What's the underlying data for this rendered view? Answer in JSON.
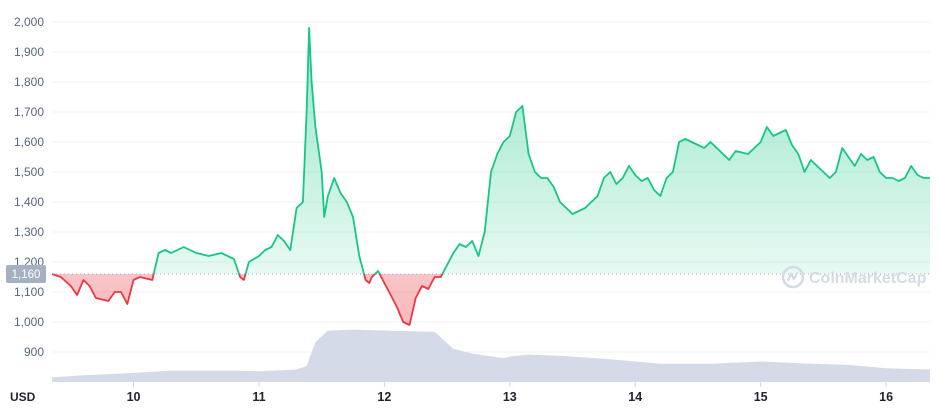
{
  "chart_data": {
    "type": "line",
    "unit_label": "USD",
    "reference_value": 1160,
    "reference_label": "1,160",
    "watermark_text": "CoinMarketCap",
    "watermark_icon": "coinmarketcap-logo-icon",
    "ylim": [
      800,
      2000
    ],
    "y_ticks": [
      900,
      1000,
      1100,
      1200,
      1300,
      1400,
      1500,
      1600,
      1700,
      1800,
      1900,
      2000
    ],
    "y_tick_labels": [
      "900",
      "1,000",
      "1,100",
      "1,200",
      "1,300",
      "1,400",
      "1,500",
      "1,600",
      "1,700",
      "1,800",
      "1,900",
      "2,000"
    ],
    "xlim": [
      9.35,
      16.35
    ],
    "x_ticks": [
      10,
      11,
      12,
      13,
      14,
      15,
      16
    ],
    "x_tick_labels": [
      "10",
      "11",
      "12",
      "13",
      "14",
      "15",
      "16"
    ],
    "colors": {
      "above": "#16c784",
      "below": "#ea3943",
      "volume": "#cfd6e4"
    },
    "price": {
      "x": [
        9.35,
        9.42,
        9.5,
        9.55,
        9.6,
        9.65,
        9.7,
        9.8,
        9.85,
        9.9,
        9.95,
        10.0,
        10.05,
        10.15,
        10.2,
        10.25,
        10.3,
        10.4,
        10.5,
        10.6,
        10.7,
        10.8,
        10.85,
        10.88,
        10.92,
        11.0,
        11.05,
        11.1,
        11.15,
        11.2,
        11.25,
        11.3,
        11.35,
        11.38,
        11.4,
        11.42,
        11.45,
        11.5,
        11.52,
        11.55,
        11.6,
        11.65,
        11.7,
        11.75,
        11.8,
        11.85,
        11.88,
        11.9,
        11.95,
        12.05,
        12.1,
        12.15,
        12.2,
        12.25,
        12.3,
        12.35,
        12.4,
        12.45,
        12.55,
        12.6,
        12.65,
        12.7,
        12.75,
        12.8,
        12.85,
        12.9,
        12.95,
        13.0,
        13.05,
        13.1,
        13.15,
        13.2,
        13.25,
        13.3,
        13.35,
        13.4,
        13.45,
        13.5,
        13.6,
        13.7,
        13.75,
        13.8,
        13.85,
        13.9,
        13.95,
        14.0,
        14.05,
        14.1,
        14.15,
        14.2,
        14.25,
        14.3,
        14.35,
        14.4,
        14.5,
        14.55,
        14.6,
        14.65,
        14.7,
        14.75,
        14.8,
        14.9,
        15.0,
        15.05,
        15.1,
        15.15,
        15.2,
        15.25,
        15.3,
        15.35,
        15.4,
        15.45,
        15.5,
        15.55,
        15.6,
        15.65,
        15.7,
        15.75,
        15.8,
        15.85,
        15.9,
        15.95,
        16.0,
        16.05,
        16.1,
        16.15,
        16.2,
        16.25,
        16.3,
        16.35
      ],
      "y": [
        1160,
        1150,
        1120,
        1090,
        1140,
        1120,
        1080,
        1070,
        1100,
        1100,
        1060,
        1140,
        1150,
        1140,
        1230,
        1240,
        1230,
        1250,
        1230,
        1220,
        1230,
        1210,
        1150,
        1140,
        1200,
        1220,
        1240,
        1250,
        1290,
        1270,
        1240,
        1380,
        1400,
        1700,
        1980,
        1800,
        1650,
        1500,
        1350,
        1420,
        1480,
        1430,
        1400,
        1350,
        1220,
        1140,
        1130,
        1150,
        1170,
        1090,
        1050,
        1000,
        990,
        1080,
        1120,
        1110,
        1150,
        1150,
        1230,
        1260,
        1250,
        1270,
        1220,
        1300,
        1500,
        1560,
        1600,
        1620,
        1700,
        1720,
        1560,
        1500,
        1480,
        1480,
        1450,
        1400,
        1380,
        1360,
        1380,
        1420,
        1480,
        1500,
        1460,
        1480,
        1520,
        1490,
        1470,
        1480,
        1440,
        1420,
        1480,
        1500,
        1600,
        1610,
        1590,
        1580,
        1600,
        1580,
        1560,
        1540,
        1570,
        1560,
        1600,
        1650,
        1620,
        1630,
        1640,
        1590,
        1560,
        1500,
        1540,
        1520,
        1500,
        1480,
        1500,
        1580,
        1550,
        1520,
        1560,
        1540,
        1550,
        1500,
        1480,
        1480,
        1470,
        1480,
        1520,
        1490,
        1480,
        1480
      ],
      "points": [
        [
          9.35,
          1160
        ],
        [
          9.42,
          1150
        ],
        [
          9.5,
          1120
        ],
        [
          9.55,
          1090
        ],
        [
          9.6,
          1140
        ],
        [
          9.65,
          1120
        ],
        [
          9.7,
          1080
        ],
        [
          9.8,
          1070
        ],
        [
          9.85,
          1100
        ],
        [
          9.9,
          1100
        ],
        [
          9.95,
          1060
        ],
        [
          10.0,
          1140
        ],
        [
          10.05,
          1150
        ],
        [
          10.15,
          1140
        ],
        [
          10.2,
          1230
        ],
        [
          10.25,
          1240
        ],
        [
          10.3,
          1230
        ],
        [
          10.4,
          1250
        ],
        [
          10.5,
          1230
        ],
        [
          10.6,
          1220
        ],
        [
          10.7,
          1230
        ],
        [
          10.8,
          1210
        ],
        [
          10.85,
          1150
        ],
        [
          10.88,
          1140
        ],
        [
          10.92,
          1200
        ],
        [
          11.0,
          1220
        ],
        [
          11.05,
          1240
        ],
        [
          11.1,
          1250
        ],
        [
          11.15,
          1290
        ],
        [
          11.2,
          1270
        ],
        [
          11.25,
          1240
        ],
        [
          11.3,
          1380
        ],
        [
          11.35,
          1400
        ],
        [
          11.38,
          1700
        ],
        [
          11.4,
          1980
        ],
        [
          11.42,
          1800
        ],
        [
          11.45,
          1650
        ],
        [
          11.5,
          1500
        ],
        [
          11.52,
          1350
        ],
        [
          11.55,
          1420
        ],
        [
          11.6,
          1480
        ],
        [
          11.65,
          1430
        ],
        [
          11.7,
          1400
        ],
        [
          11.75,
          1350
        ],
        [
          11.8,
          1220
        ],
        [
          11.85,
          1140
        ],
        [
          11.88,
          1130
        ],
        [
          11.9,
          1150
        ],
        [
          11.95,
          1170
        ],
        [
          12.05,
          1090
        ],
        [
          12.1,
          1050
        ],
        [
          12.15,
          1000
        ],
        [
          12.2,
          990
        ],
        [
          12.25,
          1080
        ],
        [
          12.3,
          1120
        ],
        [
          12.35,
          1110
        ],
        [
          12.4,
          1150
        ],
        [
          12.45,
          1150
        ],
        [
          12.55,
          1230
        ],
        [
          12.6,
          1260
        ],
        [
          12.65,
          1250
        ],
        [
          12.7,
          1270
        ],
        [
          12.75,
          1220
        ],
        [
          12.8,
          1300
        ],
        [
          12.85,
          1500
        ],
        [
          12.9,
          1560
        ],
        [
          12.95,
          1600
        ],
        [
          13.0,
          1620
        ],
        [
          13.05,
          1700
        ],
        [
          13.1,
          1720
        ],
        [
          13.15,
          1560
        ],
        [
          13.2,
          1500
        ],
        [
          13.25,
          1480
        ],
        [
          13.3,
          1480
        ],
        [
          13.35,
          1450
        ],
        [
          13.4,
          1400
        ],
        [
          13.45,
          1380
        ],
        [
          13.5,
          1360
        ],
        [
          13.6,
          1380
        ],
        [
          13.7,
          1420
        ],
        [
          13.75,
          1480
        ],
        [
          13.8,
          1500
        ],
        [
          13.85,
          1460
        ],
        [
          13.9,
          1480
        ],
        [
          13.95,
          1520
        ],
        [
          14.0,
          1490
        ],
        [
          14.05,
          1470
        ],
        [
          14.1,
          1480
        ],
        [
          14.15,
          1440
        ],
        [
          14.2,
          1420
        ],
        [
          14.25,
          1480
        ],
        [
          14.3,
          1500
        ],
        [
          14.35,
          1600
        ],
        [
          14.4,
          1610
        ],
        [
          14.5,
          1590
        ],
        [
          14.55,
          1580
        ],
        [
          14.6,
          1600
        ],
        [
          14.65,
          1580
        ],
        [
          14.7,
          1560
        ],
        [
          14.75,
          1540
        ],
        [
          14.8,
          1570
        ],
        [
          14.9,
          1560
        ],
        [
          15.0,
          1600
        ],
        [
          15.05,
          1650
        ],
        [
          15.1,
          1620
        ],
        [
          15.15,
          1630
        ],
        [
          15.2,
          1640
        ],
        [
          15.25,
          1590
        ],
        [
          15.3,
          1560
        ],
        [
          15.35,
          1500
        ],
        [
          15.4,
          1540
        ],
        [
          15.45,
          1520
        ],
        [
          15.5,
          1500
        ],
        [
          15.55,
          1480
        ],
        [
          15.6,
          1500
        ],
        [
          15.65,
          1580
        ],
        [
          15.7,
          1550
        ],
        [
          15.75,
          1520
        ],
        [
          15.8,
          1560
        ],
        [
          15.85,
          1540
        ],
        [
          15.9,
          1550
        ],
        [
          15.95,
          1500
        ],
        [
          16.0,
          1480
        ],
        [
          16.05,
          1480
        ],
        [
          16.1,
          1470
        ],
        [
          16.15,
          1480
        ],
        [
          16.2,
          1520
        ],
        [
          16.25,
          1490
        ],
        [
          16.3,
          1480
        ],
        [
          16.35,
          1480
        ]
      ]
    },
    "volume_relative": {
      "points": [
        [
          9.35,
          0.08
        ],
        [
          9.6,
          0.12
        ],
        [
          10.0,
          0.16
        ],
        [
          10.3,
          0.2
        ],
        [
          10.8,
          0.2
        ],
        [
          11.0,
          0.19
        ],
        [
          11.3,
          0.22
        ],
        [
          11.38,
          0.28
        ],
        [
          11.45,
          0.7
        ],
        [
          11.55,
          0.9
        ],
        [
          11.75,
          0.92
        ],
        [
          12.05,
          0.9
        ],
        [
          12.4,
          0.88
        ],
        [
          12.55,
          0.58
        ],
        [
          12.7,
          0.5
        ],
        [
          12.95,
          0.42
        ],
        [
          13.0,
          0.45
        ],
        [
          13.15,
          0.48
        ],
        [
          13.4,
          0.46
        ],
        [
          13.8,
          0.4
        ],
        [
          14.0,
          0.36
        ],
        [
          14.2,
          0.32
        ],
        [
          14.6,
          0.32
        ],
        [
          14.8,
          0.34
        ],
        [
          15.0,
          0.36
        ],
        [
          15.3,
          0.33
        ],
        [
          15.7,
          0.3
        ],
        [
          16.0,
          0.24
        ],
        [
          16.35,
          0.22
        ]
      ]
    }
  }
}
